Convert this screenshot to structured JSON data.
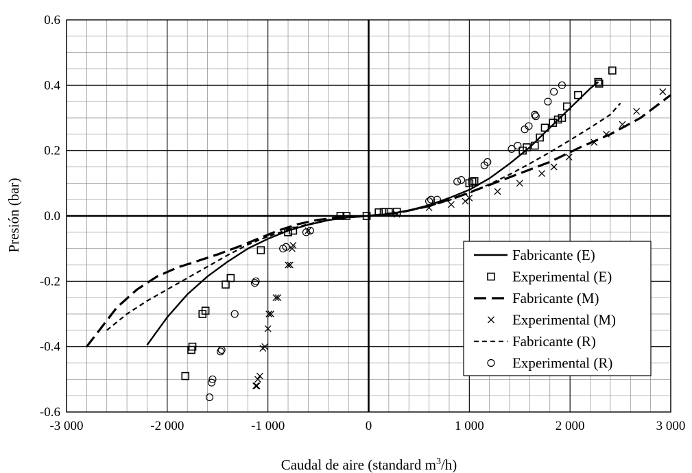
{
  "chart_data": {
    "type": "scatter",
    "xlabel_main": "Caudal de aire (standard m",
    "xlabel_sup": "3",
    "xlabel_end": "/h)",
    "ylabel": "Presión (bar)",
    "xlim": [
      -3000,
      3000
    ],
    "ylim": [
      -0.6,
      0.6
    ],
    "x_ticks": [
      -3000,
      -2000,
      -1000,
      0,
      1000,
      2000,
      3000
    ],
    "x_tick_labels": [
      "-3 000",
      "-2 000",
      "-1 000",
      "0",
      "1 000",
      "2 000",
      "3 000"
    ],
    "y_ticks": [
      -0.6,
      -0.4,
      -0.2,
      0.0,
      0.2,
      0.4,
      0.6
    ],
    "y_tick_labels": [
      "-0.6",
      "-0.4",
      "-0.2",
      "0.0",
      "0.2",
      "0.4",
      "0.6"
    ],
    "minor_grid": {
      "x_step": 200,
      "y_step": 0.05
    },
    "legend_position": "bottom-right",
    "series": [
      {
        "name": "Fabricante (E)",
        "kind": "line",
        "style": "solid",
        "points": [
          [
            -2200,
            -0.395
          ],
          [
            -2000,
            -0.31
          ],
          [
            -1800,
            -0.24
          ],
          [
            -1600,
            -0.185
          ],
          [
            -1400,
            -0.14
          ],
          [
            -1200,
            -0.1
          ],
          [
            -1000,
            -0.07
          ],
          [
            -800,
            -0.045
          ],
          [
            -600,
            -0.027
          ],
          [
            -400,
            -0.013
          ],
          [
            -200,
            -0.004
          ],
          [
            0,
            0
          ],
          [
            200,
            0.006
          ],
          [
            400,
            0.017
          ],
          [
            600,
            0.033
          ],
          [
            800,
            0.055
          ],
          [
            1000,
            0.08
          ],
          [
            1200,
            0.115
          ],
          [
            1400,
            0.16
          ],
          [
            1600,
            0.21
          ],
          [
            1800,
            0.27
          ],
          [
            2000,
            0.33
          ],
          [
            2200,
            0.39
          ],
          [
            2280,
            0.41
          ]
        ]
      },
      {
        "name": "Experimental (E)",
        "kind": "marker",
        "marker": "square",
        "points": [
          [
            2420,
            0.445
          ],
          [
            2280,
            0.41
          ],
          [
            2290,
            0.405
          ],
          [
            2080,
            0.37
          ],
          [
            1970,
            0.335
          ],
          [
            1920,
            0.3
          ],
          [
            1880,
            0.295
          ],
          [
            1830,
            0.285
          ],
          [
            1750,
            0.27
          ],
          [
            1700,
            0.24
          ],
          [
            1650,
            0.215
          ],
          [
            1570,
            0.21
          ],
          [
            1530,
            0.2
          ],
          [
            1050,
            0.107
          ],
          [
            1030,
            0.105
          ],
          [
            1000,
            0.1
          ],
          [
            280,
            0.013
          ],
          [
            200,
            0.012
          ],
          [
            150,
            0.012
          ],
          [
            100,
            0.011
          ],
          [
            -20,
            0
          ],
          [
            -220,
            0
          ],
          [
            -280,
            0
          ],
          [
            -750,
            -0.045
          ],
          [
            -800,
            -0.05
          ],
          [
            -1070,
            -0.105
          ],
          [
            -1370,
            -0.19
          ],
          [
            -1420,
            -0.21
          ],
          [
            -1620,
            -0.29
          ],
          [
            -1650,
            -0.3
          ],
          [
            -1750,
            -0.4
          ],
          [
            -1760,
            -0.41
          ],
          [
            -1820,
            -0.49
          ]
        ]
      },
      {
        "name": "Fabricante (M)",
        "kind": "line",
        "style": "long-dash",
        "points": [
          [
            -2800,
            -0.4
          ],
          [
            -2650,
            -0.34
          ],
          [
            -2500,
            -0.28
          ],
          [
            -2300,
            -0.225
          ],
          [
            -2100,
            -0.185
          ],
          [
            -1900,
            -0.158
          ],
          [
            -1700,
            -0.138
          ],
          [
            -1500,
            -0.118
          ],
          [
            -1300,
            -0.095
          ],
          [
            -1100,
            -0.07
          ],
          [
            -900,
            -0.045
          ],
          [
            -700,
            -0.025
          ],
          [
            -500,
            -0.012
          ],
          [
            -300,
            -0.005
          ],
          [
            0,
            0
          ],
          [
            300,
            0.01
          ],
          [
            600,
            0.03
          ],
          [
            900,
            0.06
          ],
          [
            1200,
            0.095
          ],
          [
            1500,
            0.13
          ],
          [
            1800,
            0.165
          ],
          [
            2100,
            0.21
          ],
          [
            2400,
            0.25
          ],
          [
            2700,
            0.3
          ],
          [
            3000,
            0.37
          ]
        ]
      },
      {
        "name": "Experimental (M)",
        "kind": "marker",
        "marker": "x",
        "points": [
          [
            2920,
            0.38
          ],
          [
            2660,
            0.32
          ],
          [
            2520,
            0.28
          ],
          [
            2360,
            0.25
          ],
          [
            2240,
            0.225
          ],
          [
            1990,
            0.18
          ],
          [
            1840,
            0.15
          ],
          [
            1720,
            0.13
          ],
          [
            1500,
            0.1
          ],
          [
            1280,
            0.075
          ],
          [
            1000,
            0.055
          ],
          [
            960,
            0.045
          ],
          [
            820,
            0.035
          ],
          [
            600,
            0.025
          ],
          [
            280,
            0.005
          ],
          [
            -600,
            -0.045
          ],
          [
            -750,
            -0.09
          ],
          [
            -760,
            -0.1
          ],
          [
            -780,
            -0.15
          ],
          [
            -800,
            -0.15
          ],
          [
            -900,
            -0.25
          ],
          [
            -920,
            -0.25
          ],
          [
            -970,
            -0.3
          ],
          [
            -990,
            -0.3
          ],
          [
            -1000,
            -0.345
          ],
          [
            -1030,
            -0.4
          ],
          [
            -1050,
            -0.405
          ],
          [
            -1080,
            -0.49
          ],
          [
            -1100,
            -0.5
          ],
          [
            -1110,
            -0.52
          ],
          [
            -1120,
            -0.52
          ]
        ]
      },
      {
        "name": "Fabricante (R)",
        "kind": "line",
        "style": "short-dash",
        "points": [
          [
            -2600,
            -0.35
          ],
          [
            -2400,
            -0.3
          ],
          [
            -2200,
            -0.26
          ],
          [
            -2000,
            -0.225
          ],
          [
            -1800,
            -0.19
          ],
          [
            -1600,
            -0.155
          ],
          [
            -1400,
            -0.12
          ],
          [
            -1200,
            -0.088
          ],
          [
            -1000,
            -0.063
          ],
          [
            -800,
            -0.042
          ],
          [
            -600,
            -0.025
          ],
          [
            -400,
            -0.012
          ],
          [
            -200,
            -0.004
          ],
          [
            0,
            0
          ],
          [
            200,
            0.006
          ],
          [
            400,
            0.016
          ],
          [
            600,
            0.03
          ],
          [
            800,
            0.048
          ],
          [
            1000,
            0.07
          ],
          [
            1200,
            0.097
          ],
          [
            1400,
            0.127
          ],
          [
            1600,
            0.16
          ],
          [
            1800,
            0.195
          ],
          [
            2000,
            0.232
          ],
          [
            2200,
            0.27
          ],
          [
            2400,
            0.31
          ],
          [
            2500,
            0.345
          ]
        ]
      },
      {
        "name": "Experimental (R)",
        "kind": "marker",
        "marker": "circle",
        "points": [
          [
            1920,
            0.4
          ],
          [
            1840,
            0.38
          ],
          [
            1780,
            0.35
          ],
          [
            1650,
            0.31
          ],
          [
            1660,
            0.305
          ],
          [
            1590,
            0.275
          ],
          [
            1550,
            0.265
          ],
          [
            1480,
            0.215
          ],
          [
            1420,
            0.205
          ],
          [
            1180,
            0.165
          ],
          [
            1150,
            0.155
          ],
          [
            920,
            0.11
          ],
          [
            880,
            0.105
          ],
          [
            680,
            0.05
          ],
          [
            620,
            0.05
          ],
          [
            600,
            0.045
          ],
          [
            -580,
            -0.045
          ],
          [
            -620,
            -0.05
          ],
          [
            -820,
            -0.095
          ],
          [
            -850,
            -0.1
          ],
          [
            -1120,
            -0.2
          ],
          [
            -1130,
            -0.205
          ],
          [
            -1330,
            -0.3
          ],
          [
            -1460,
            -0.41
          ],
          [
            -1470,
            -0.415
          ],
          [
            -1550,
            -0.5
          ],
          [
            -1560,
            -0.51
          ],
          [
            -1580,
            -0.555
          ]
        ]
      }
    ]
  }
}
